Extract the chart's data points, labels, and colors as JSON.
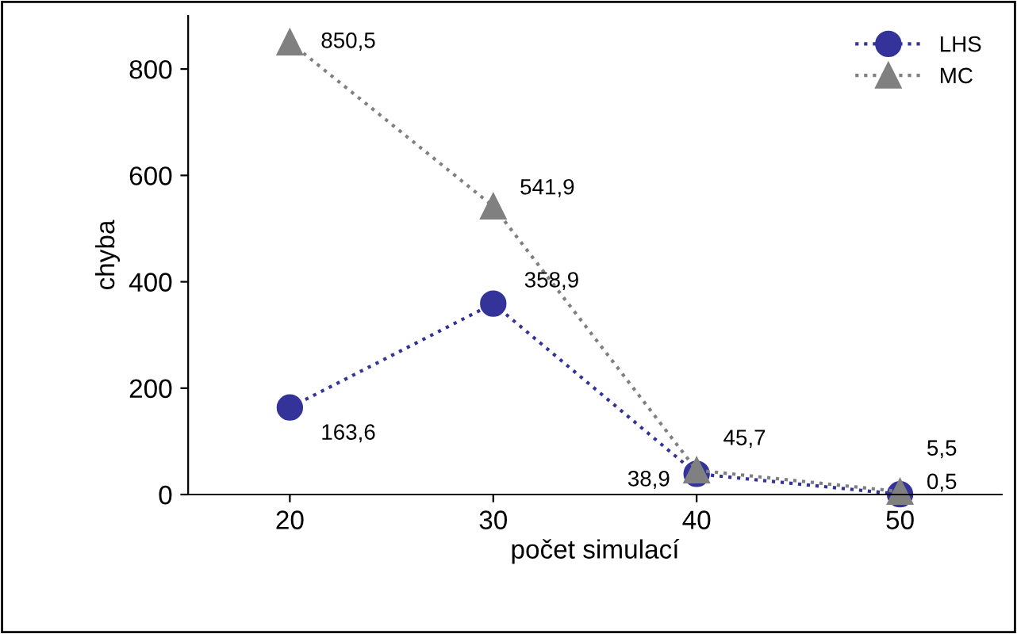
{
  "chart_data": {
    "type": "line",
    "xlabel": "počet simulací",
    "ylabel": "chyba",
    "categories": [
      "20",
      "30",
      "40",
      "50"
    ],
    "series": [
      {
        "name": "LHS",
        "color": "#333399",
        "marker": "circle",
        "values": [
          163.6,
          358.9,
          38.9,
          0.5
        ],
        "value_labels": [
          "163,6",
          "358,9",
          "38,9",
          "0,5"
        ]
      },
      {
        "name": "MC",
        "color": "#808080",
        "marker": "triangle",
        "values": [
          850.5,
          541.9,
          45.7,
          5.5
        ],
        "value_labels": [
          "850,5",
          "541,9",
          "45,7",
          "5,5"
        ]
      }
    ],
    "ylim": [
      0,
      900
    ],
    "yticks": [
      0,
      200,
      400,
      600,
      800
    ],
    "grid": false,
    "legend": "top right",
    "line_style": "dotted"
  }
}
